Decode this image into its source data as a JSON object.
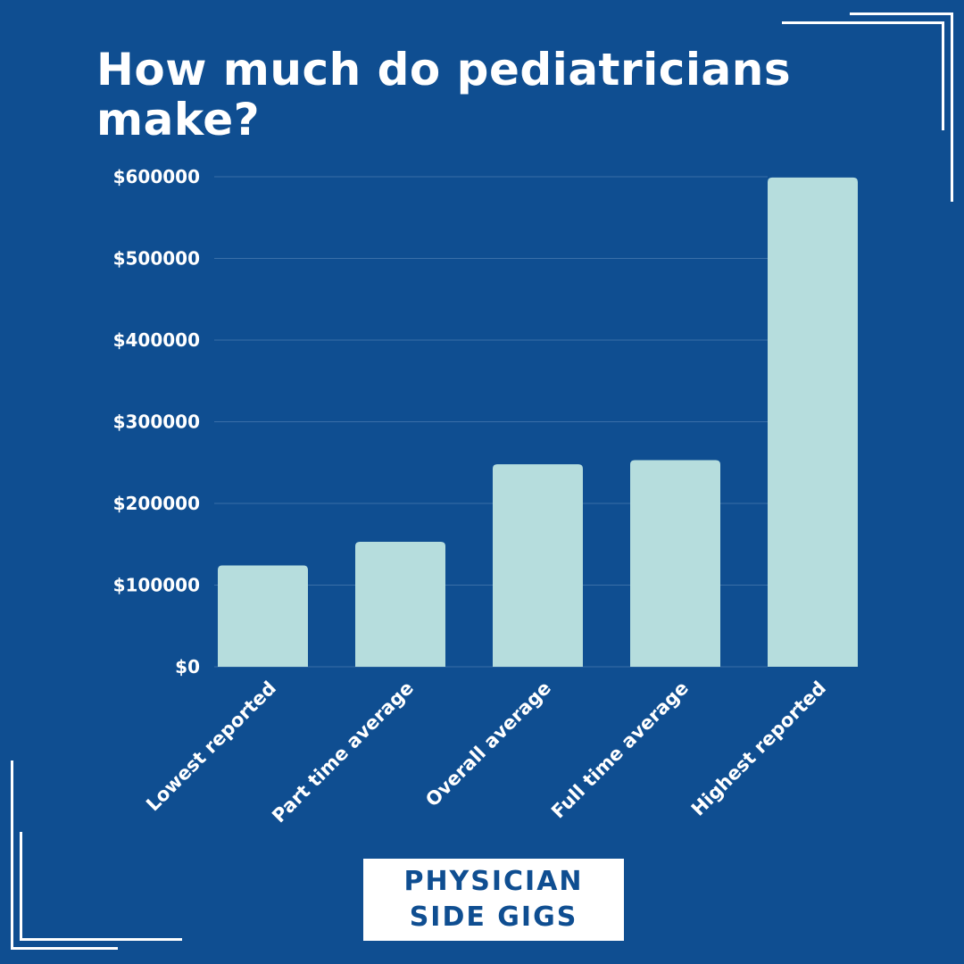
{
  "title": "How much do pediatricians make?",
  "logo": {
    "line1": "PHYSICIAN",
    "line2": "SIDE GIGS"
  },
  "colors": {
    "background": "#0f4e91",
    "bar": "#b6dddd",
    "text": "#ffffff",
    "grid": "#3a6fa8"
  },
  "chart_data": {
    "type": "bar",
    "title": "How much do pediatricians make?",
    "categories": [
      "Lowest reported",
      "Part time average",
      "Overall average",
      "Full time average",
      "Highest reported"
    ],
    "values": [
      124000,
      153000,
      248000,
      253000,
      599000
    ],
    "ylim": [
      0,
      600000
    ],
    "yticks": [
      0,
      100000,
      200000,
      300000,
      400000,
      500000,
      600000
    ],
    "ytick_labels": [
      "$0",
      "$100000",
      "$200000",
      "$300000",
      "$400000",
      "$500000",
      "$600000"
    ],
    "grid": true,
    "xlabel": "",
    "ylabel": ""
  }
}
